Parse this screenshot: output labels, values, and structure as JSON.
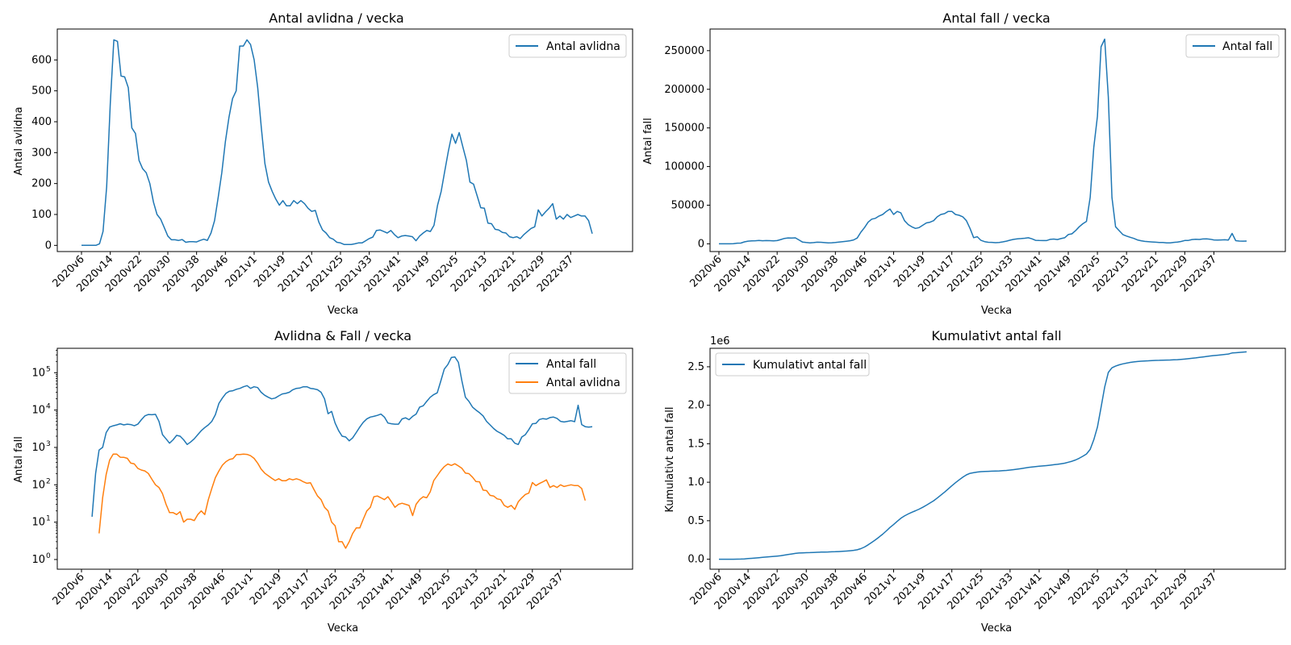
{
  "chart_data": [
    {
      "type": "line",
      "title": "Antal avlidna / vecka",
      "xlabel": "Vecka",
      "ylabel": "Antal avlidna",
      "yscale": "linear",
      "ylim": [
        -20,
        700
      ],
      "yticks": [
        0,
        100,
        200,
        300,
        400,
        500,
        600
      ],
      "ytick_labels": [
        "0",
        "100",
        "200",
        "300",
        "400",
        "500",
        "600"
      ],
      "xtick_labels": [
        "2020v6",
        "2020v14",
        "2020v22",
        "2020v30",
        "2020v38",
        "2020v46",
        "2021v1",
        "2021v9",
        "2021v17",
        "2021v25",
        "2021v33",
        "2021v41",
        "2021v49",
        "2022v5",
        "2022v13",
        "2022v21",
        "2022v29",
        "2022v37"
      ],
      "legend_loc": "upper right",
      "series": [
        {
          "name": "Antal avlidna",
          "color": "#1f77b4",
          "values": [
            0,
            0,
            0,
            0,
            0,
            5,
            45,
            190,
            460,
            665,
            660,
            548,
            545,
            510,
            380,
            362,
            275,
            248,
            235,
            200,
            140,
            100,
            85,
            58,
            30,
            18,
            18,
            16,
            19,
            10,
            12,
            12,
            11,
            16,
            20,
            16,
            40,
            80,
            155,
            235,
            335,
            415,
            475,
            500,
            645,
            645,
            665,
            650,
            600,
            510,
            380,
            265,
            205,
            175,
            150,
            130,
            145,
            128,
            128,
            145,
            135,
            145,
            135,
            120,
            110,
            113,
            75,
            50,
            40,
            25,
            20,
            10,
            8,
            3,
            3,
            3,
            5,
            8,
            8,
            15,
            22,
            27,
            48,
            50,
            45,
            40,
            48,
            35,
            25,
            30,
            32,
            30,
            28,
            15,
            30,
            40,
            48,
            45,
            65,
            130,
            175,
            240,
            305,
            360,
            330,
            365,
            320,
            275,
            205,
            198,
            160,
            122,
            120,
            72,
            70,
            52,
            50,
            42,
            40,
            28,
            25,
            28,
            22,
            35,
            45,
            55,
            60,
            115,
            95,
            108,
            120,
            135,
            85,
            95,
            85,
            100,
            90,
            95,
            100,
            95,
            95,
            80,
            38
          ]
        }
      ]
    },
    {
      "type": "line",
      "title": "Antal fall / vecka",
      "xlabel": "Vecka",
      "ylabel": "Antal fall",
      "yscale": "linear",
      "ylim": [
        -10000,
        278000
      ],
      "yticks": [
        0,
        50000,
        100000,
        150000,
        200000,
        250000
      ],
      "ytick_labels": [
        "0",
        "50000",
        "100000",
        "150000",
        "200000",
        "250000"
      ],
      "xtick_labels": [
        "2020v6",
        "2020v14",
        "2020v22",
        "2020v30",
        "2020v38",
        "2020v46",
        "2021v1",
        "2021v9",
        "2021v17",
        "2021v25",
        "2021v33",
        "2021v41",
        "2021v49",
        "2022v5",
        "2022v13",
        "2022v21",
        "2022v29",
        "2022v37"
      ],
      "legend_loc": "upper right",
      "series": [
        {
          "name": "Antal fall",
          "color": "#1f77b4",
          "values": [
            0,
            0,
            0,
            14,
            200,
            850,
            1000,
            2500,
            3500,
            3800,
            4000,
            4300,
            4000,
            4200,
            4100,
            3800,
            4200,
            5500,
            7000,
            7600,
            7500,
            7700,
            5000,
            2200,
            1700,
            1300,
            1600,
            2100,
            2000,
            1600,
            1200,
            1400,
            1700,
            2200,
            2800,
            3400,
            4000,
            5000,
            7500,
            15000,
            21000,
            28000,
            32000,
            33000,
            36000,
            38000,
            42000,
            45000,
            38000,
            42000,
            40000,
            30000,
            25000,
            22000,
            20000,
            21000,
            24000,
            27000,
            28000,
            30000,
            35000,
            38000,
            39000,
            42000,
            42000,
            38000,
            37000,
            35000,
            30000,
            20000,
            8000,
            9200,
            4500,
            2800,
            2000,
            1900,
            1500,
            1800,
            2500,
            3500,
            4700,
            5800,
            6500,
            6800,
            7200,
            7800,
            6500,
            4500,
            4300,
            4200,
            4200,
            5800,
            6200,
            5500,
            6800,
            7800,
            12000,
            13000,
            17000,
            22000,
            26000,
            29000,
            60000,
            125000,
            165000,
            255000,
            265000,
            190000,
            60000,
            22000,
            17000,
            12000,
            10000,
            8500,
            7000,
            5000,
            4000,
            3200,
            2700,
            2400,
            2100,
            1700,
            1700,
            1300,
            1200,
            1900,
            2200,
            3000,
            4300,
            4400,
            5600,
            5900,
            5700,
            6300,
            6500,
            6000,
            5000,
            4800,
            5000,
            5200,
            4900,
            13500,
            4100,
            3600,
            3500,
            3600
          ]
        }
      ]
    },
    {
      "type": "line",
      "title": "Avlidna & Fall / vecka",
      "xlabel": "Vecka",
      "ylabel": "Antal fall",
      "yscale": "log",
      "ylim": [
        0.55,
        450000
      ],
      "yticks": [
        1,
        10,
        100,
        1000,
        10000,
        100000
      ],
      "ytick_labels": [
        "10",
        "10",
        "10",
        "10",
        "10",
        "10"
      ],
      "ytick_exponents": [
        "0",
        "1",
        "2",
        "3",
        "4",
        "5"
      ],
      "xtick_labels": [
        "2020v6",
        "2020v14",
        "2020v22",
        "2020v30",
        "2020v38",
        "2020v46",
        "2021v1",
        "2021v9",
        "2021v17",
        "2021v25",
        "2021v33",
        "2021v41",
        "2021v49",
        "2022v5",
        "2022v13",
        "2022v21",
        "2022v29",
        "2022v37"
      ],
      "legend_loc": "upper right",
      "series": [
        {
          "name": "Antal fall",
          "color": "#1f77b4",
          "values": [
            1,
            null,
            null,
            14,
            200,
            850,
            1000,
            2500,
            3500,
            3800,
            4000,
            4300,
            4000,
            4200,
            4100,
            3800,
            4200,
            5500,
            7000,
            7600,
            7500,
            7700,
            5000,
            2200,
            1700,
            1300,
            1600,
            2100,
            2000,
            1600,
            1200,
            1400,
            1700,
            2200,
            2800,
            3400,
            4000,
            5000,
            7500,
            15000,
            21000,
            28000,
            32000,
            33000,
            36000,
            38000,
            42000,
            45000,
            38000,
            42000,
            40000,
            30000,
            25000,
            22000,
            20000,
            21000,
            24000,
            27000,
            28000,
            30000,
            35000,
            38000,
            39000,
            42000,
            42000,
            38000,
            37000,
            35000,
            30000,
            20000,
            8000,
            9200,
            4500,
            2800,
            2000,
            1900,
            1500,
            1800,
            2500,
            3500,
            4700,
            5800,
            6500,
            6800,
            7200,
            7800,
            6500,
            4500,
            4300,
            4200,
            4200,
            5800,
            6200,
            5500,
            6800,
            7800,
            12000,
            13000,
            17000,
            22000,
            26000,
            29000,
            60000,
            125000,
            165000,
            255000,
            265000,
            190000,
            60000,
            22000,
            17000,
            12000,
            10000,
            8500,
            7000,
            5000,
            4000,
            3200,
            2700,
            2400,
            2100,
            1700,
            1700,
            1300,
            1200,
            1900,
            2200,
            3000,
            4300,
            4400,
            5600,
            5900,
            5700,
            6300,
            6500,
            6000,
            5000,
            4800,
            5000,
            5200,
            4900,
            13500,
            4100,
            3600,
            3500,
            3600
          ]
        },
        {
          "name": "Antal avlidna",
          "color": "#ff7f0e",
          "values": [
            null,
            null,
            null,
            null,
            null,
            5,
            45,
            190,
            460,
            665,
            660,
            548,
            545,
            510,
            380,
            362,
            275,
            248,
            235,
            200,
            140,
            100,
            85,
            58,
            30,
            18,
            18,
            16,
            19,
            10,
            12,
            12,
            11,
            16,
            20,
            16,
            40,
            80,
            155,
            235,
            335,
            415,
            475,
            500,
            645,
            645,
            665,
            650,
            600,
            510,
            380,
            265,
            205,
            175,
            150,
            130,
            145,
            128,
            128,
            145,
            135,
            145,
            135,
            120,
            110,
            113,
            75,
            50,
            40,
            25,
            20,
            10,
            8,
            3,
            3,
            2,
            3,
            5,
            7,
            7,
            12,
            20,
            25,
            48,
            50,
            45,
            40,
            48,
            35,
            25,
            30,
            32,
            30,
            28,
            15,
            30,
            40,
            48,
            45,
            65,
            130,
            175,
            240,
            305,
            360,
            330,
            365,
            320,
            275,
            205,
            198,
            160,
            122,
            120,
            72,
            70,
            52,
            50,
            42,
            40,
            28,
            25,
            28,
            22,
            35,
            45,
            55,
            60,
            115,
            95,
            108,
            120,
            135,
            85,
            95,
            85,
            100,
            90,
            95,
            100,
            95,
            95,
            80,
            38
          ]
        }
      ]
    },
    {
      "type": "line",
      "title": "Kumulativt antal fall",
      "xlabel": "Vecka",
      "ylabel": "Kumulativt antal fall",
      "yscale": "linear",
      "y_offset_text": "1e6",
      "ylim": [
        -0.13,
        2.74
      ],
      "yticks": [
        0,
        0.5,
        1.0,
        1.5,
        2.0,
        2.5
      ],
      "ytick_labels": [
        "0.0",
        "0.5",
        "1.0",
        "1.5",
        "2.0",
        "2.5"
      ],
      "xtick_labels": [
        "2020v6",
        "2020v14",
        "2020v22",
        "2020v30",
        "2020v38",
        "2020v46",
        "2021v1",
        "2021v9",
        "2021v17",
        "2021v25",
        "2021v33",
        "2021v41",
        "2021v49",
        "2022v5",
        "2022v13",
        "2022v21",
        "2022v29",
        "2022v37"
      ],
      "legend_loc": "upper left",
      "series": [
        {
          "name": "Kumulativt antal fall",
          "color": "#1f77b4"
        }
      ]
    }
  ]
}
